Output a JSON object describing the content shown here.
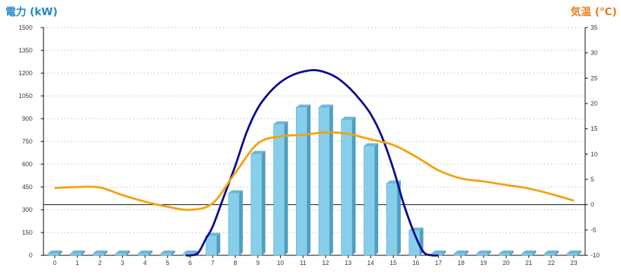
{
  "chart_data": {
    "type": "bar",
    "title": "",
    "left_axis": {
      "label": "電力 (kW)",
      "range": [
        0,
        1500
      ],
      "ticks": [
        0,
        150,
        300,
        450,
        600,
        750,
        900,
        1050,
        1200,
        1350,
        1500
      ]
    },
    "right_axis": {
      "label": "気温 (℃)",
      "range": [
        -10,
        35
      ],
      "ticks": [
        -10,
        -5,
        0,
        5,
        10,
        15,
        20,
        25,
        30,
        35
      ]
    },
    "categories": [
      "0",
      "1",
      "2",
      "3",
      "4",
      "5",
      "6",
      "7",
      "8",
      "9",
      "10",
      "11",
      "12",
      "13",
      "14",
      "15",
      "16",
      "17",
      "18",
      "19",
      "20",
      "21",
      "22",
      "23"
    ],
    "grid": true,
    "series": [
      {
        "type": "bar",
        "axis": "left",
        "values": [
          0,
          0,
          0,
          0,
          0,
          0,
          0,
          130,
          410,
          670,
          865,
          975,
          975,
          895,
          720,
          475,
          165,
          0,
          0,
          0,
          0,
          0,
          0,
          0
        ]
      },
      {
        "type": "line",
        "axis": "left",
        "x": [
          5.8,
          6,
          6.35,
          6.7,
          7,
          7.5,
          8,
          8.5,
          9,
          9.5,
          10,
          10.5,
          11,
          11.5,
          12,
          12.5,
          13,
          13.5,
          14,
          14.5,
          15,
          15.5,
          16,
          16.35,
          16.7,
          17
        ],
        "values": [
          0,
          0,
          15,
          110,
          190,
          390,
          590,
          810,
          970,
          1070,
          1140,
          1185,
          1210,
          1220,
          1205,
          1170,
          1110,
          1030,
          930,
          780,
          570,
          320,
          120,
          20,
          0,
          0
        ]
      },
      {
        "type": "line",
        "axis": "right",
        "values": [
          3.3,
          3.5,
          3.4,
          1.9,
          0.6,
          -0.4,
          -1.0,
          0.3,
          6.3,
          12.1,
          13.5,
          13.8,
          14.3,
          14.0,
          12.9,
          11.8,
          9.5,
          6.8,
          5.2,
          4.6,
          3.9,
          3.2,
          2.1,
          0.8
        ],
        "color": "#f5a10a"
      }
    ],
    "reference_line": {
      "axis": "right",
      "value": 0
    },
    "colors": {
      "bar_front": "#87ceeb",
      "bar_side": "#4f9fc0",
      "bar_top": "#6db7d6",
      "power_line": "#0a0a8f",
      "temp_line": "#f5a10a",
      "left_title": "#1e88c8",
      "right_title": "#ee7d1a",
      "grid": "#c8c8c8"
    }
  }
}
